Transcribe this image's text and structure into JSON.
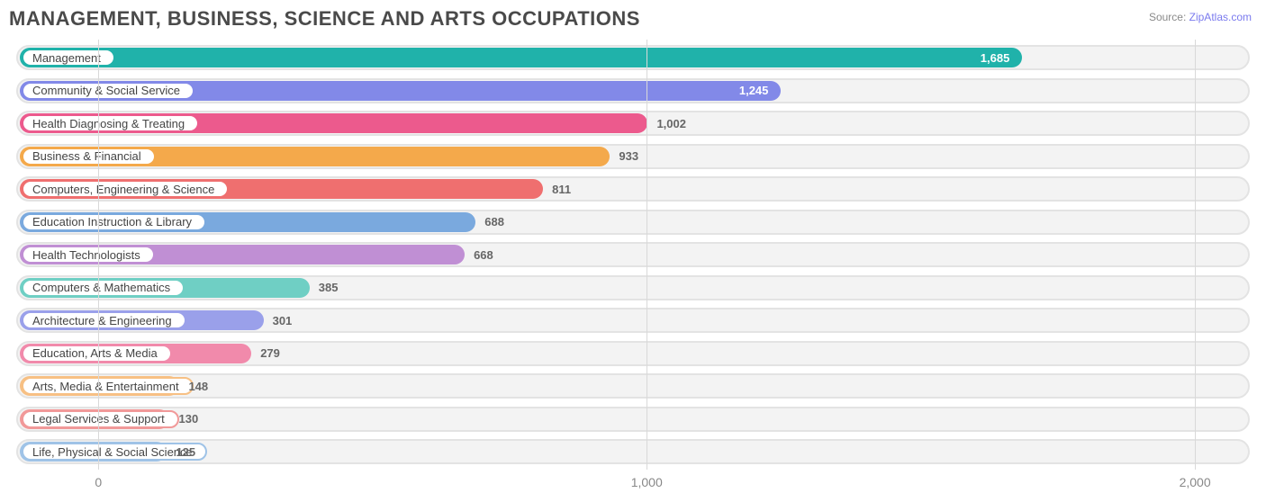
{
  "header": {
    "title": "MANAGEMENT, BUSINESS, SCIENCE AND ARTS OCCUPATIONS",
    "source_prefix": "Source: ",
    "source_name": "ZipAtlas.com"
  },
  "chart": {
    "type": "bar-horizontal",
    "background_color": "#ffffff",
    "track_bg": "#f3f3f3",
    "track_border": "#e3e3e3",
    "grid_color": "#d9d9d9",
    "axis_label_color": "#888888",
    "label_fontsize": 13,
    "title_fontsize": 22,
    "title_color": "#4a4a4a",
    "value_min": -150,
    "value_max": 2100,
    "zero_offset_ratio": 0.0667,
    "ticks": [
      {
        "value": 0,
        "label": "0"
      },
      {
        "value": 1000,
        "label": "1,000"
      },
      {
        "value": 2000,
        "label": "2,000"
      }
    ],
    "bars": [
      {
        "label": "Management",
        "value": 1685,
        "display": "1,685",
        "color": "#20b2aa",
        "label_inside": true,
        "label_color": "#ffffff"
      },
      {
        "label": "Community & Social Service",
        "value": 1245,
        "display": "1,245",
        "color": "#8289e8",
        "label_inside": true,
        "label_color": "#ffffff"
      },
      {
        "label": "Health Diagnosing & Treating",
        "value": 1002,
        "display": "1,002",
        "color": "#ec5a8d",
        "label_inside": false,
        "label_color": "#666666"
      },
      {
        "label": "Business & Financial",
        "value": 933,
        "display": "933",
        "color": "#f4a94b",
        "label_inside": false,
        "label_color": "#666666"
      },
      {
        "label": "Computers, Engineering & Science",
        "value": 811,
        "display": "811",
        "color": "#ef6f6f",
        "label_inside": false,
        "label_color": "#666666"
      },
      {
        "label": "Education Instruction & Library",
        "value": 688,
        "display": "688",
        "color": "#7aa9de",
        "label_inside": false,
        "label_color": "#666666"
      },
      {
        "label": "Health Technologists",
        "value": 668,
        "display": "668",
        "color": "#c08fd4",
        "label_inside": false,
        "label_color": "#666666"
      },
      {
        "label": "Computers & Mathematics",
        "value": 385,
        "display": "385",
        "color": "#6fcfc4",
        "label_inside": false,
        "label_color": "#666666"
      },
      {
        "label": "Architecture & Engineering",
        "value": 301,
        "display": "301",
        "color": "#9aa0ea",
        "label_inside": false,
        "label_color": "#666666"
      },
      {
        "label": "Education, Arts & Media",
        "value": 279,
        "display": "279",
        "color": "#f18aab",
        "label_inside": false,
        "label_color": "#666666"
      },
      {
        "label": "Arts, Media & Entertainment",
        "value": 148,
        "display": "148",
        "color": "#f7c084",
        "label_inside": false,
        "label_color": "#666666"
      },
      {
        "label": "Legal Services & Support",
        "value": 130,
        "display": "130",
        "color": "#f19999",
        "label_inside": false,
        "label_color": "#666666"
      },
      {
        "label": "Life, Physical & Social Science",
        "value": 125,
        "display": "125",
        "color": "#9fc3e7",
        "label_inside": false,
        "label_color": "#666666"
      }
    ]
  }
}
